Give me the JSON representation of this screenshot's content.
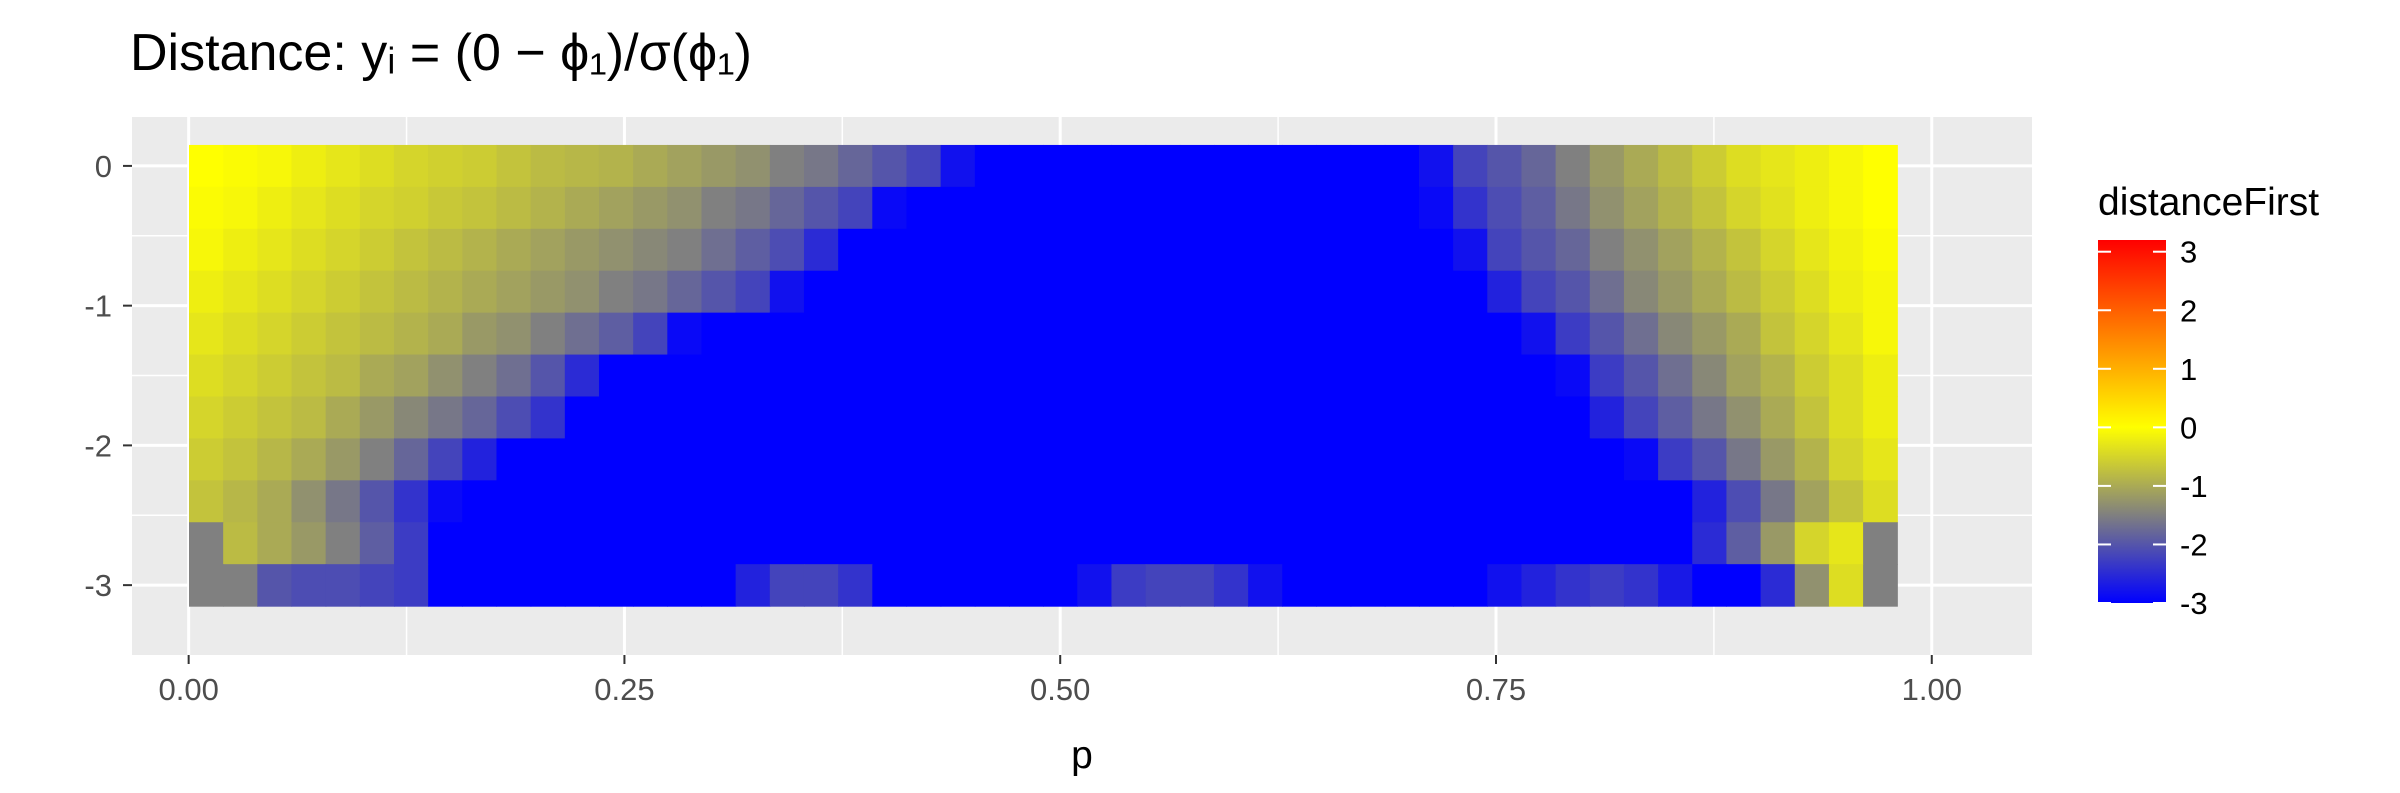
{
  "chart_data": {
    "type": "heatmap",
    "title": "Distance: yᵢ = (0 − ϕ₁)/σ(ϕ₁)",
    "xlabel": "p",
    "ylabel": "",
    "x_ticks": [
      0.0,
      0.25,
      0.5,
      0.75,
      1.0
    ],
    "x_tick_labels": [
      "0.00",
      "0.25",
      "0.50",
      "0.75",
      "1.00"
    ],
    "y_ticks": [
      0,
      -1,
      -2,
      -3
    ],
    "y_tick_labels": [
      "0",
      "-1",
      "-2",
      "-3"
    ],
    "xlim": [
      -0.0325,
      1.0575
    ],
    "ylim": [
      -3.5,
      0.35
    ],
    "grid": true,
    "legend": {
      "title": "distanceFirst",
      "position": "right",
      "breaks": [
        3,
        2,
        1,
        0,
        -1,
        -2,
        -3
      ],
      "labels": [
        "3",
        "2",
        "1",
        "0",
        "-1",
        "-2",
        "-3"
      ],
      "range": [
        -3,
        3.2
      ]
    },
    "colors": {
      "low": "#0000ff",
      "mid": "#ffff00",
      "high": "#ff0000",
      "na": "#808080",
      "panel_bg": "#ebebeb",
      "grid": "#ffffff"
    },
    "grid_spec": {
      "x_start": 0.01,
      "x_step": 0.0196,
      "n_cols": 50,
      "y_start": 0.0,
      "y_step": -0.3,
      "n_rows": 11
    },
    "cells": [
      [
        0.0,
        -0.05,
        -0.1,
        -0.2,
        -0.3,
        -0.4,
        -0.5,
        -0.55,
        -0.6,
        -0.7,
        -0.8,
        -0.85,
        -0.9,
        -1.0,
        -1.1,
        -1.2,
        -1.3,
        -1.5,
        -1.6,
        -1.8,
        -2.0,
        -2.2,
        -2.8,
        -3,
        -3,
        -3,
        -3,
        -3,
        -3,
        -3,
        -3,
        -3,
        -3,
        -3,
        -3,
        -3,
        -2.8,
        -2.2,
        -2.0,
        -1.8,
        -1.5,
        -1.2,
        -1.0,
        -0.8,
        -0.6,
        -0.4,
        -0.3,
        -0.2,
        -0.1,
        0.0
      ],
      [
        -0.05,
        -0.1,
        -0.2,
        -0.3,
        -0.4,
        -0.5,
        -0.55,
        -0.65,
        -0.7,
        -0.8,
        -0.9,
        -1.0,
        -1.1,
        -1.2,
        -1.3,
        -1.5,
        -1.6,
        -1.8,
        -2.0,
        -2.2,
        -2.9,
        -3,
        -3,
        -3,
        -3,
        -3,
        -3,
        -3,
        -3,
        -3,
        -3,
        -3,
        -3,
        -3,
        -3,
        -3,
        -2.9,
        -2.4,
        -2.1,
        -1.9,
        -1.6,
        -1.3,
        -1.1,
        -0.9,
        -0.7,
        -0.5,
        -0.35,
        -0.2,
        -0.1,
        0.0
      ],
      [
        -0.1,
        -0.2,
        -0.3,
        -0.4,
        -0.5,
        -0.6,
        -0.7,
        -0.8,
        -0.9,
        -1.0,
        -1.1,
        -1.2,
        -1.3,
        -1.4,
        -1.5,
        -1.7,
        -1.9,
        -2.1,
        -2.5,
        -3,
        -3,
        -3,
        -3,
        -3,
        -3,
        -3,
        -3,
        -3,
        -3,
        -3,
        -3,
        -3,
        -3,
        -3,
        -3,
        -3,
        -3,
        -2.8,
        -2.2,
        -2.0,
        -1.8,
        -1.5,
        -1.3,
        -1.1,
        -0.9,
        -0.7,
        -0.5,
        -0.3,
        -0.15,
        -0.05
      ],
      [
        -0.2,
        -0.3,
        -0.4,
        -0.5,
        -0.6,
        -0.7,
        -0.8,
        -0.9,
        -1.0,
        -1.1,
        -1.2,
        -1.3,
        -1.5,
        -1.6,
        -1.8,
        -2.0,
        -2.2,
        -2.8,
        -3,
        -3,
        -3,
        -3,
        -3,
        -3,
        -3,
        -3,
        -3,
        -3,
        -3,
        -3,
        -3,
        -3,
        -3,
        -3,
        -3,
        -3,
        -3,
        -3,
        -2.6,
        -2.2,
        -2.0,
        -1.7,
        -1.4,
        -1.2,
        -1.0,
        -0.8,
        -0.6,
        -0.4,
        -0.2,
        -0.1
      ],
      [
        -0.3,
        -0.4,
        -0.5,
        -0.6,
        -0.7,
        -0.8,
        -0.9,
        -1.0,
        -1.2,
        -1.3,
        -1.5,
        -1.7,
        -1.9,
        -2.2,
        -2.9,
        -3,
        -3,
        -3,
        -3,
        -3,
        -3,
        -3,
        -3,
        -3,
        -3,
        -3,
        -3,
        -3,
        -3,
        -3,
        -3,
        -3,
        -3,
        -3,
        -3,
        -3,
        -3,
        -3,
        -3,
        -2.8,
        -2.3,
        -2.0,
        -1.7,
        -1.4,
        -1.2,
        -1.0,
        -0.7,
        -0.5,
        -0.3,
        -0.1
      ],
      [
        -0.4,
        -0.5,
        -0.6,
        -0.7,
        -0.8,
        -1.0,
        -1.1,
        -1.3,
        -1.5,
        -1.7,
        -2.0,
        -2.5,
        -3,
        -3,
        -3,
        -3,
        -3,
        -3,
        -3,
        -3,
        -3,
        -3,
        -3,
        -3,
        -3,
        -3,
        -3,
        -3,
        -3,
        -3,
        -3,
        -3,
        -3,
        -3,
        -3,
        -3,
        -3,
        -3,
        -3,
        -3,
        -2.9,
        -2.3,
        -2.0,
        -1.7,
        -1.4,
        -1.1,
        -0.9,
        -0.6,
        -0.4,
        -0.2
      ],
      [
        -0.5,
        -0.6,
        -0.7,
        -0.8,
        -1.0,
        -1.2,
        -1.4,
        -1.6,
        -1.8,
        -2.1,
        -2.4,
        -3,
        -3,
        -3,
        -3,
        -3,
        -3,
        -3,
        -3,
        -3,
        -3,
        -3,
        -3,
        -3,
        -3,
        -3,
        -3,
        -3,
        -3,
        -3,
        -3,
        -3,
        -3,
        -3,
        -3,
        -3,
        -3,
        -3,
        -3,
        -3,
        -3,
        -2.6,
        -2.2,
        -1.9,
        -1.6,
        -1.3,
        -1.0,
        -0.7,
        -0.4,
        -0.2
      ],
      [
        -0.6,
        -0.7,
        -0.85,
        -1.0,
        -1.2,
        -1.5,
        -1.8,
        -2.2,
        -2.6,
        -3,
        -3,
        -3,
        -3,
        -3,
        -3,
        -3,
        -3,
        -3,
        -3,
        -3,
        -3,
        -3,
        -3,
        -3,
        -3,
        -3,
        -3,
        -3,
        -3,
        -3,
        -3,
        -3,
        -3,
        -3,
        -3,
        -3,
        -3,
        -3,
        -3,
        -3,
        -3,
        -3,
        -2.9,
        -2.3,
        -2.0,
        -1.6,
        -1.2,
        -0.9,
        -0.5,
        -0.3
      ],
      [
        -0.7,
        -0.85,
        -1.0,
        -1.3,
        -1.6,
        -2.0,
        -2.4,
        -2.9,
        -3,
        -3,
        -3,
        -3,
        -3,
        -3,
        -3,
        -3,
        -3,
        -3,
        -3,
        -3,
        -3,
        -3,
        -3,
        -3,
        -3,
        -3,
        -3,
        -3,
        -3,
        -3,
        -3,
        -3,
        -3,
        -3,
        -3,
        -3,
        -3,
        -3,
        -3,
        -3,
        -3,
        -3,
        -3,
        -3,
        -2.6,
        -2.1,
        -1.6,
        -1.1,
        -0.7,
        -0.4
      ],
      [
        null,
        -0.8,
        -1.0,
        -1.2,
        -1.5,
        -1.9,
        -2.3,
        -3,
        -3,
        -3,
        -3,
        -3,
        -3,
        -3,
        -3,
        -3,
        -3,
        -3,
        -3,
        -3,
        -3,
        -3,
        -3,
        -3,
        -3,
        -3,
        -3,
        -3,
        -3,
        -3,
        -3,
        -3,
        -3,
        -3,
        -3,
        -3,
        -3,
        -3,
        -3,
        -3,
        -3,
        -3,
        -3,
        -3,
        -2.5,
        -1.9,
        -1.2,
        -0.5,
        -0.3,
        null
      ],
      [
        null,
        null,
        -2.0,
        -2.1,
        -2.1,
        -2.2,
        -2.3,
        -3,
        -3,
        -3,
        -3,
        -3,
        -3,
        -3,
        -3,
        -3,
        -2.6,
        -2.2,
        -2.2,
        -2.4,
        -3,
        -3,
        -3,
        -3,
        -3,
        -3,
        -2.8,
        -2.3,
        -2.2,
        -2.2,
        -2.4,
        -2.8,
        -3,
        -3,
        -3,
        -3,
        -3,
        -3,
        -2.8,
        -2.6,
        -2.4,
        -2.3,
        -2.4,
        -2.7,
        -3,
        -3,
        -2.5,
        -1.3,
        -0.4,
        null
      ]
    ]
  }
}
